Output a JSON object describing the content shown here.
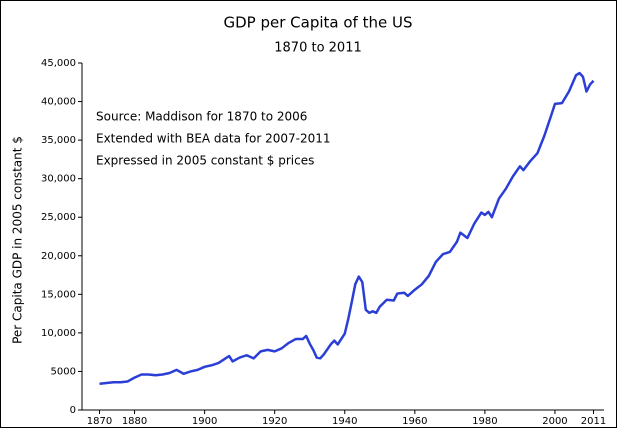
{
  "chart_data": {
    "type": "line",
    "title": "GDP per Capita of the US",
    "subtitle": "1870 to 2011",
    "y_label": "Per Capita GDP in 2005 constant $",
    "annotations": [
      "Source:  Maddison for 1870 to 2006",
      "Extended with BEA data for 2007-2011",
      "Expressed in 2005 constant $ prices"
    ],
    "color": "#2b3fd6",
    "x": [
      1870,
      1872,
      1874,
      1876,
      1878,
      1880,
      1882,
      1884,
      1886,
      1888,
      1890,
      1892,
      1894,
      1896,
      1898,
      1900,
      1902,
      1904,
      1906,
      1907,
      1908,
      1910,
      1912,
      1914,
      1916,
      1918,
      1920,
      1922,
      1924,
      1926,
      1928,
      1929,
      1930,
      1931,
      1932,
      1933,
      1934,
      1936,
      1937,
      1938,
      1940,
      1941,
      1942,
      1943,
      1944,
      1945,
      1946,
      1947,
      1948,
      1949,
      1950,
      1952,
      1954,
      1955,
      1957,
      1958,
      1960,
      1962,
      1964,
      1966,
      1968,
      1970,
      1972,
      1973,
      1975,
      1977,
      1979,
      1980,
      1981,
      1982,
      1984,
      1986,
      1988,
      1990,
      1991,
      1993,
      1995,
      1997,
      1999,
      2000,
      2002,
      2004,
      2006,
      2007,
      2008,
      2009,
      2010,
      2011
    ],
    "values": [
      3400,
      3500,
      3600,
      3600,
      3700,
      4200,
      4600,
      4600,
      4500,
      4600,
      4800,
      5200,
      4700,
      5000,
      5200,
      5600,
      5800,
      6100,
      6700,
      7000,
      6300,
      6800,
      7100,
      6700,
      7600,
      7800,
      7600,
      8000,
      8700,
      9200,
      9200,
      9600,
      8600,
      7800,
      6800,
      6700,
      7200,
      8500,
      9000,
      8500,
      9900,
      11800,
      14000,
      16300,
      17300,
      16600,
      13000,
      12600,
      12800,
      12600,
      13400,
      14300,
      14200,
      15100,
      15200,
      14800,
      15600,
      16300,
      17400,
      19200,
      20200,
      20500,
      21800,
      23000,
      22300,
      24200,
      25600,
      25300,
      25700,
      25000,
      27400,
      28700,
      30300,
      31600,
      31100,
      32300,
      33300,
      35600,
      38300,
      39700,
      39800,
      41300,
      43400,
      43700,
      43200,
      41300,
      42200,
      42700
    ],
    "xlim": [
      1865,
      2014
    ],
    "xticks": [
      1870,
      1880,
      1900,
      1920,
      1940,
      1960,
      1980,
      2000,
      2011
    ],
    "ylim": [
      0,
      45000
    ],
    "yticks": [
      0,
      5000,
      {
        "value": 10000,
        "label": "10,000"
      },
      {
        "value": 15000,
        "label": "15,000"
      },
      {
        "value": 20000,
        "label": "20,000"
      },
      {
        "value": 25000,
        "label": "25,000"
      },
      {
        "value": 30000,
        "label": "30,000"
      },
      {
        "value": 35000,
        "label": "35,000"
      },
      {
        "value": 40000,
        "label": "40,000"
      },
      {
        "value": 45000,
        "label": "45,000"
      }
    ]
  }
}
